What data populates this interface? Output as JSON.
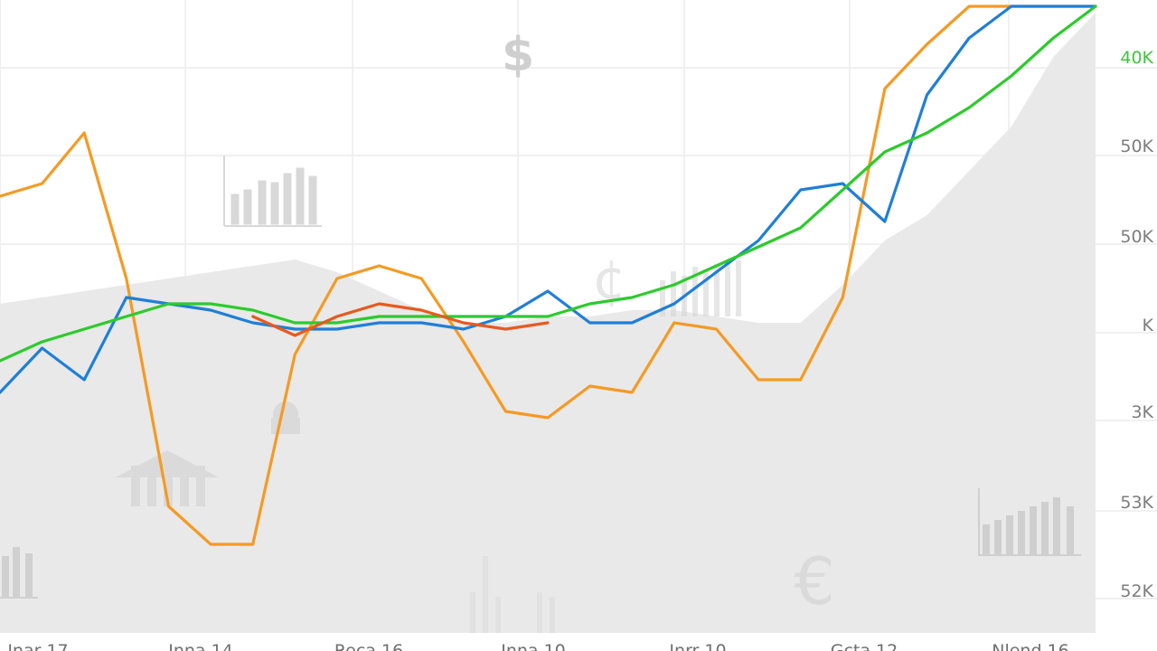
{
  "chart_data": {
    "type": "line",
    "title": "",
    "xlabel": "",
    "ylabel": "",
    "x_tick_labels": [
      "Jnar 17",
      "Inna 14",
      "Reca 16",
      "Inna 10",
      "Jnrr 10",
      "Gcta 12",
      "Nlend 16"
    ],
    "y_tick_labels": [
      "40K",
      "50K",
      "50K",
      "K",
      "3K",
      "53K",
      "52K"
    ],
    "y_tick_accent_color": "#3cc63c",
    "grid": true,
    "legend": "none",
    "x": [
      0,
      1,
      2,
      3,
      4,
      5,
      6,
      7,
      8,
      9,
      10,
      11,
      12,
      13,
      14,
      15,
      16,
      17,
      18,
      19,
      20,
      21,
      22,
      23,
      24,
      25,
      26
    ],
    "x_range": [
      0,
      26
    ],
    "y_range": [
      0,
      100
    ],
    "background_area": {
      "color": "#e9e9e9",
      "values": [
        52,
        53,
        54,
        55,
        56,
        57,
        58,
        59,
        57,
        54,
        51,
        49,
        49,
        50,
        50,
        51,
        51,
        50,
        49,
        49,
        55,
        62,
        66,
        73,
        80,
        91,
        98
      ]
    },
    "series": [
      {
        "color": "#f59a23",
        "values": [
          69,
          71,
          79,
          56,
          20,
          14,
          14,
          44,
          56,
          58,
          56,
          46,
          35,
          34,
          39,
          38,
          49,
          48,
          40,
          40,
          53,
          86,
          93,
          99,
          99,
          99,
          99
        ]
      },
      {
        "color": "#1f7fd8",
        "values": [
          38,
          45,
          40,
          53,
          52,
          51,
          49,
          48,
          48,
          49,
          49,
          48,
          50,
          54,
          49,
          49,
          52,
          57,
          62,
          70,
          71,
          65,
          85,
          94,
          99,
          99,
          99
        ]
      },
      {
        "color": "#2ccb2c",
        "values": [
          43,
          46,
          48,
          50,
          52,
          52,
          51,
          49,
          49,
          50,
          50,
          50,
          50,
          50,
          52,
          53,
          55,
          58,
          61,
          64,
          70,
          76,
          79,
          83,
          88,
          94,
          99
        ]
      },
      {
        "color": "#e85a1e",
        "values": [
          null,
          null,
          null,
          null,
          null,
          null,
          50,
          47,
          50,
          52,
          51,
          49,
          48,
          49,
          null,
          null,
          null,
          null,
          null,
          null,
          null,
          null,
          null,
          null,
          null,
          null,
          null
        ]
      }
    ]
  },
  "watermarks": {
    "dollar_glyph": "$",
    "euro_glyph": "€",
    "currency_glyph": "¢"
  }
}
